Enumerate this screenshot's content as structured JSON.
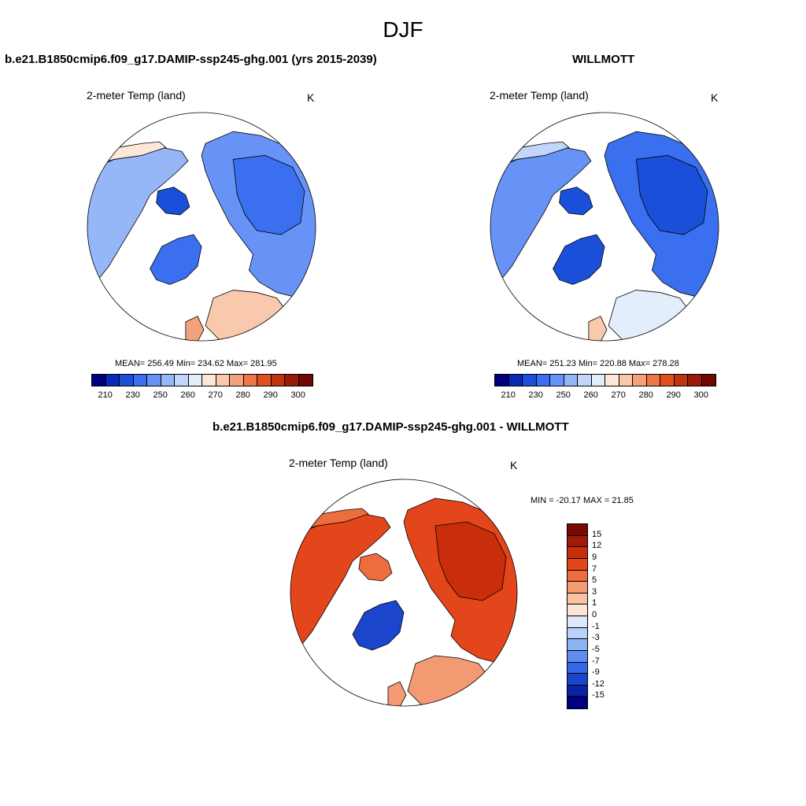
{
  "figure_title": "DJF",
  "panels": [
    {
      "title": "b.e21.B1850cmip6.f09_g17.DAMIP-ssp245-ghg.001 (yrs 2015-2039)",
      "variable": "2-meter Temp (land)",
      "units": "K",
      "stats": "MEAN= 256.49  Min= 234.62  Max= 281.95",
      "colorbar_ticks": [
        "210",
        "230",
        "250",
        "260",
        "270",
        "280",
        "290",
        "300"
      ]
    },
    {
      "title": "WILLMOTT",
      "variable": "2-meter Temp (land)",
      "units": "K",
      "stats": "MEAN= 251.23  Min= 220.88  Max= 278.28",
      "colorbar_ticks": [
        "210",
        "230",
        "250",
        "260",
        "270",
        "280",
        "290",
        "300"
      ]
    },
    {
      "title": "b.e21.B1850cmip6.f09_g17.DAMIP-ssp245-ghg.001 - WILLMOTT",
      "variable": "2-meter Temp (land)",
      "units": "K",
      "stats": "MIN = -20.17 MAX =  21.85",
      "colorbar_ticks": [
        "15",
        "12",
        "9",
        "7",
        "5",
        "3",
        "1",
        "0",
        "-1",
        "-3",
        "-5",
        "-7",
        "-9",
        "-12",
        "-15"
      ]
    }
  ],
  "colors": {
    "abs_scale": [
      "#00007f",
      "#0a2ab8",
      "#1a4fd9",
      "#3a6ff0",
      "#6693f5",
      "#95b6f7",
      "#c2d6fa",
      "#e4eefb",
      "#fde7d8",
      "#f9c9ad",
      "#f4a27d",
      "#ee7748",
      "#e0501f",
      "#c13410",
      "#9a1c08",
      "#6e0a02"
    ],
    "diff_scale": [
      "#7a0a02",
      "#a01a06",
      "#c92e0c",
      "#e3461a",
      "#ee6d3f",
      "#f49a72",
      "#f9c2a2",
      "#fde5d6",
      "#dde9fb",
      "#b9d0f7",
      "#8fb2f4",
      "#5f8df0",
      "#3367e6",
      "#1a45cc",
      "#0b22a6",
      "#000080"
    ]
  }
}
